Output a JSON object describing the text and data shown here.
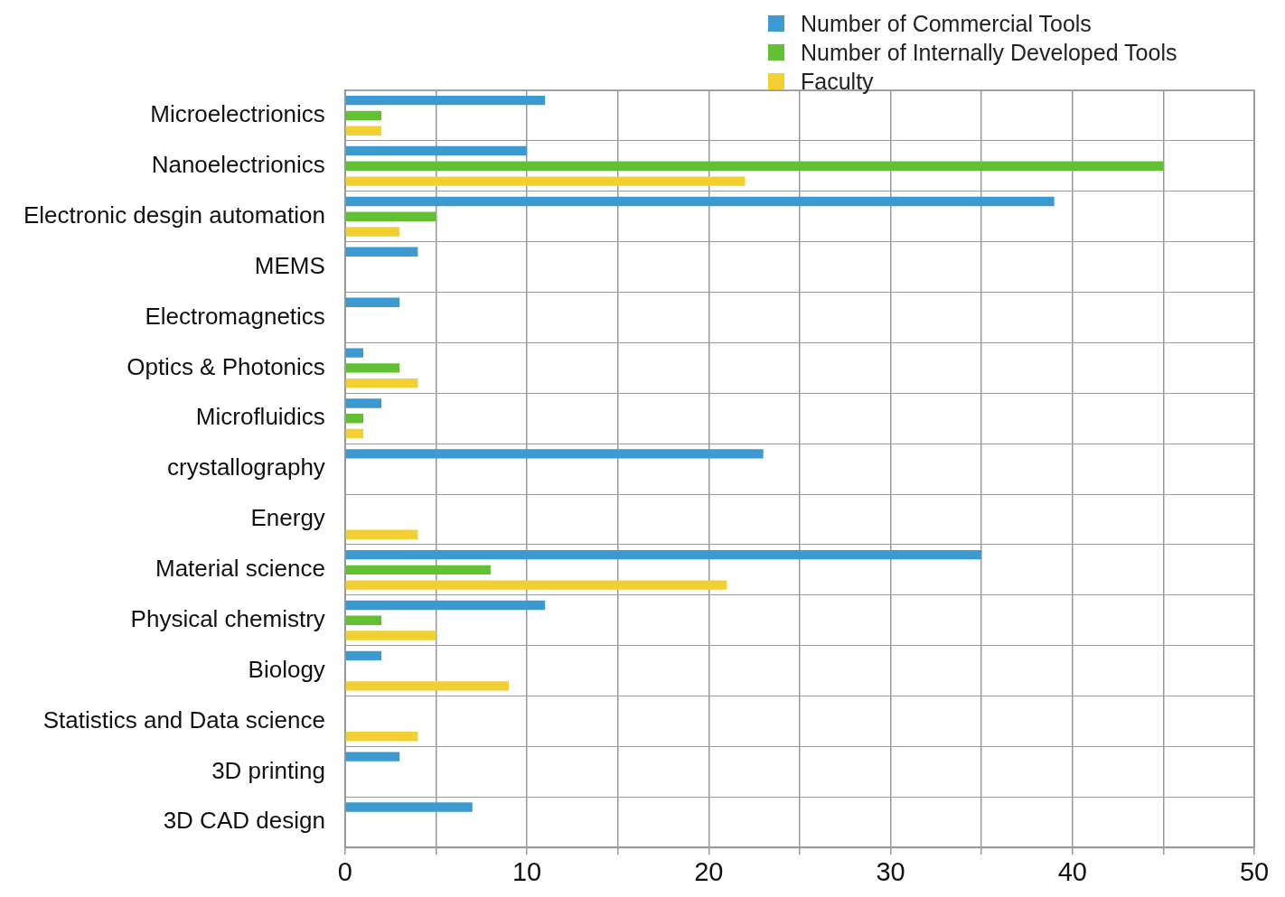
{
  "chart_data": {
    "type": "bar",
    "orientation": "horizontal",
    "categories": [
      "Microelectrionics",
      "Nanoelectrionics",
      "Electronic desgin automation",
      "MEMS",
      "Electromagnetics",
      "Optics & Photonics",
      "Microfluidics",
      "crystallography",
      "Energy",
      "Material science",
      "Physical chemistry",
      "Biology",
      "Statistics and Data science",
      "3D printing",
      "3D CAD design"
    ],
    "series": [
      {
        "name": "Number of Commercial Tools",
        "color": "#3d9ad1",
        "values": [
          11,
          10,
          39,
          4,
          3,
          1,
          2,
          23,
          null,
          35,
          11,
          2,
          null,
          3,
          7
        ]
      },
      {
        "name": "Number of Internally Developed Tools",
        "color": "#62c132",
        "values": [
          2,
          45,
          5,
          null,
          null,
          3,
          1,
          null,
          null,
          8,
          2,
          null,
          null,
          null,
          null
        ]
      },
      {
        "name": "Faculty",
        "color": "#f2d031",
        "values": [
          2,
          22,
          3,
          null,
          null,
          4,
          1,
          null,
          4,
          21,
          5,
          9,
          4,
          null,
          null
        ]
      }
    ],
    "xlim": [
      0,
      50
    ],
    "xticks": [
      0,
      {
        "value": 5,
        "label": null
      },
      10,
      {
        "value": 15,
        "label": null
      },
      20,
      {
        "value": 25,
        "label": null
      },
      30,
      {
        "value": 35,
        "label": null
      },
      40,
      {
        "value": 45,
        "label": null
      },
      50
    ],
    "grid": true,
    "legend": "top right"
  }
}
